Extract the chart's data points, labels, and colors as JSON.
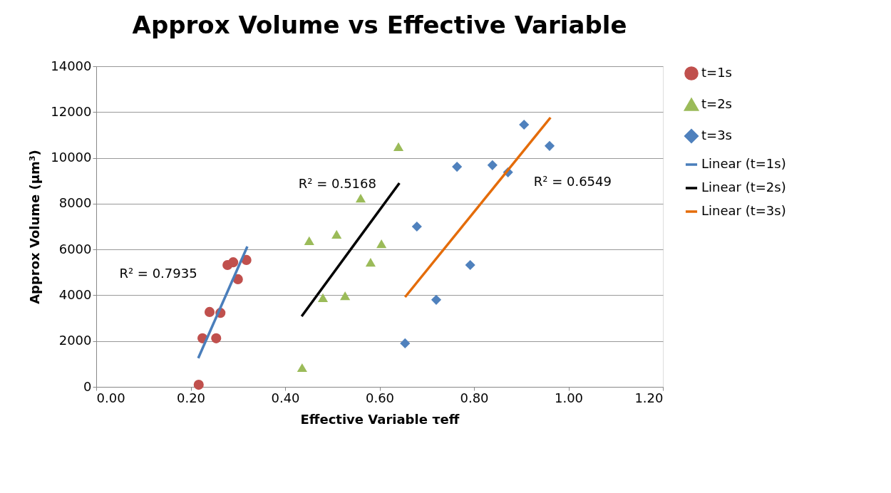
{
  "chart_data": {
    "type": "scatter",
    "title": "Approx Volume vs Effective Variable",
    "xlabel": "Effective Variable τeff",
    "ylabel": "Approx Volume (μm³)",
    "xlim": [
      0,
      1.2
    ],
    "xticks": [
      {
        "value": 0,
        "label": "0.00"
      },
      {
        "value": 0.2,
        "label": "0.20"
      },
      {
        "value": 0.4,
        "label": "0.40"
      },
      {
        "value": 0.6,
        "label": "0.60"
      },
      {
        "value": 0.8,
        "label": "0.80"
      },
      {
        "value": 1.0,
        "label": "1.00"
      },
      {
        "value": 1.2,
        "label": "1.20"
      }
    ],
    "ylim": [
      0,
      14000
    ],
    "yticks": [
      0,
      2000,
      4000,
      6000,
      8000,
      10000,
      12000,
      14000
    ],
    "grid": "y",
    "legend": "right",
    "series": [
      {
        "name": "t=1s",
        "marker": "circle",
        "color": "#c0504d",
        "x": [
          0.217,
          0.225,
          0.24,
          0.254,
          0.263,
          0.278,
          0.29,
          0.3,
          0.318
        ],
        "values": [
          90,
          2120,
          3270,
          2120,
          3230,
          5320,
          5440,
          4700,
          5540
        ]
      },
      {
        "name": "t=2s",
        "marker": "triangle",
        "color": "#9bbb59",
        "x": [
          0.436,
          0.451,
          0.48,
          0.509,
          0.527,
          0.56,
          0.581,
          0.604,
          0.64
        ],
        "values": [
          840,
          6380,
          3890,
          6660,
          3980,
          8240,
          5440,
          6250,
          10490
        ]
      },
      {
        "name": "t=3s",
        "marker": "diamond",
        "color": "#4f81bd",
        "x": [
          0.654,
          0.679,
          0.72,
          0.764,
          0.792,
          0.839,
          0.872,
          0.906,
          0.96
        ],
        "values": [
          1900,
          7000,
          3800,
          9610,
          5320,
          9680,
          9370,
          11450,
          10520
        ]
      },
      {
        "name": "Linear (t=1s)",
        "type": "line",
        "marker": "none",
        "line_style": "solid",
        "color": "#4a7ebb",
        "x": [
          0.216,
          0.32
        ],
        "values": [
          1250,
          6130
        ]
      },
      {
        "name": "Linear (t=2s)",
        "type": "line",
        "marker": "none",
        "line_style": "solid",
        "color": "#000000",
        "x": [
          0.435,
          0.642
        ],
        "values": [
          3080,
          8900
        ]
      },
      {
        "name": "Linear (t=3s)",
        "type": "line",
        "marker": "none",
        "line_style": "solid",
        "color": "#e46c0a",
        "x": [
          0.654,
          0.962
        ],
        "values": [
          3920,
          11760
        ]
      }
    ],
    "annotations": [
      "R² = 0.7935",
      "R² = 0.5168",
      "R² = 0.6549"
    ]
  }
}
